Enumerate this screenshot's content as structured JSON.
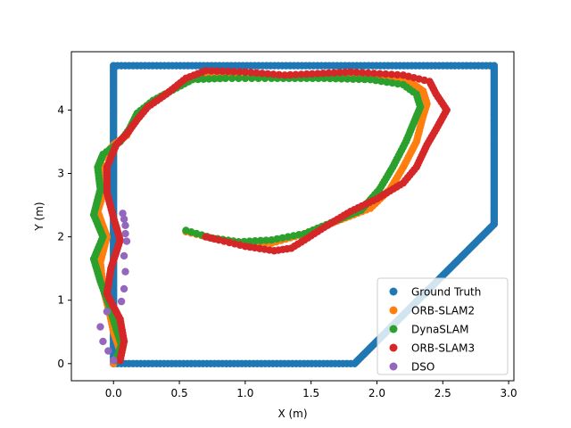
{
  "chart_data": {
    "type": "scatter",
    "xlabel": "X (m)",
    "ylabel": "Y (m)",
    "xlim": [
      -0.32,
      3.04
    ],
    "ylim": [
      -0.27,
      4.92
    ],
    "xticks": [
      0.0,
      0.5,
      1.0,
      1.5,
      2.0,
      2.5,
      3.0
    ],
    "yticks": [
      0,
      1,
      2,
      3,
      4
    ],
    "xtick_labels": [
      "0.0",
      "0.5",
      "1.0",
      "1.5",
      "2.0",
      "2.5",
      "3.0"
    ],
    "ytick_labels": [
      "0",
      "1",
      "2",
      "3",
      "4"
    ],
    "grid": false,
    "legend_position": "bottom-right",
    "series": [
      {
        "name": "Ground Truth",
        "color": "#1f77b4",
        "path": [
          [
            0.0,
            0.0
          ],
          [
            1.83,
            0.0
          ],
          [
            2.89,
            2.2
          ],
          [
            2.89,
            4.7
          ],
          [
            0.0,
            4.7
          ],
          [
            0.0,
            0.0
          ]
        ],
        "step": 0.03
      },
      {
        "name": "ORB-SLAM2",
        "color": "#ff7f0e",
        "path": [
          [
            0.0,
            0.0
          ],
          [
            0.05,
            0.2
          ],
          [
            0.0,
            0.5
          ],
          [
            -0.03,
            0.8
          ],
          [
            -0.08,
            1.2
          ],
          [
            -0.1,
            1.6
          ],
          [
            -0.05,
            2.0
          ],
          [
            -0.12,
            2.4
          ],
          [
            -0.06,
            2.8
          ],
          [
            -0.1,
            3.2
          ],
          [
            0.0,
            3.45
          ],
          [
            0.1,
            3.6
          ],
          [
            0.15,
            3.8
          ],
          [
            0.22,
            4.0
          ],
          [
            0.35,
            4.2
          ],
          [
            0.5,
            4.38
          ],
          [
            0.6,
            4.5
          ],
          [
            0.8,
            4.55
          ],
          [
            1.2,
            4.52
          ],
          [
            1.7,
            4.55
          ],
          [
            2.0,
            4.5
          ],
          [
            2.25,
            4.45
          ],
          [
            2.35,
            4.3
          ],
          [
            2.38,
            4.1
          ],
          [
            2.35,
            3.9
          ],
          [
            2.3,
            3.5
          ],
          [
            2.2,
            3.1
          ],
          [
            2.1,
            2.75
          ],
          [
            1.95,
            2.45
          ],
          [
            1.7,
            2.25
          ],
          [
            1.45,
            2.05
          ],
          [
            1.2,
            1.9
          ],
          [
            0.95,
            1.92
          ],
          [
            0.75,
            1.98
          ],
          [
            0.55,
            2.08
          ]
        ],
        "step": 0.045
      },
      {
        "name": "DynaSLAM",
        "color": "#2ca02c",
        "path": [
          [
            0.02,
            0.05
          ],
          [
            0.06,
            0.3
          ],
          [
            0.02,
            0.55
          ],
          [
            -0.03,
            0.9
          ],
          [
            -0.1,
            1.3
          ],
          [
            -0.15,
            1.65
          ],
          [
            -0.08,
            2.0
          ],
          [
            -0.15,
            2.35
          ],
          [
            -0.1,
            2.75
          ],
          [
            -0.12,
            3.1
          ],
          [
            -0.08,
            3.3
          ],
          [
            0.05,
            3.5
          ],
          [
            0.12,
            3.7
          ],
          [
            0.18,
            3.95
          ],
          [
            0.3,
            4.15
          ],
          [
            0.48,
            4.35
          ],
          [
            0.6,
            4.48
          ],
          [
            0.85,
            4.5
          ],
          [
            1.2,
            4.5
          ],
          [
            1.6,
            4.5
          ],
          [
            1.95,
            4.48
          ],
          [
            2.2,
            4.4
          ],
          [
            2.3,
            4.25
          ],
          [
            2.33,
            4.05
          ],
          [
            2.28,
            3.8
          ],
          [
            2.22,
            3.5
          ],
          [
            2.12,
            3.1
          ],
          [
            2.02,
            2.75
          ],
          [
            1.88,
            2.42
          ],
          [
            1.65,
            2.22
          ],
          [
            1.45,
            2.05
          ],
          [
            1.2,
            1.95
          ],
          [
            0.95,
            1.92
          ],
          [
            0.75,
            1.98
          ],
          [
            0.55,
            2.1
          ]
        ],
        "step": 0.05
      },
      {
        "name": "ORB-SLAM3",
        "color": "#d62728",
        "path": [
          [
            0.05,
            0.05
          ],
          [
            0.08,
            0.35
          ],
          [
            0.05,
            0.7
          ],
          [
            -0.05,
            1.1
          ],
          [
            -0.02,
            1.5
          ],
          [
            0.05,
            1.95
          ],
          [
            0.0,
            2.3
          ],
          [
            -0.05,
            2.7
          ],
          [
            -0.05,
            3.1
          ],
          [
            0.02,
            3.45
          ],
          [
            0.1,
            3.62
          ],
          [
            0.18,
            3.85
          ],
          [
            0.26,
            4.05
          ],
          [
            0.4,
            4.25
          ],
          [
            0.55,
            4.5
          ],
          [
            0.7,
            4.62
          ],
          [
            1.0,
            4.6
          ],
          [
            1.3,
            4.55
          ],
          [
            1.8,
            4.6
          ],
          [
            2.2,
            4.55
          ],
          [
            2.4,
            4.45
          ],
          [
            2.45,
            4.25
          ],
          [
            2.53,
            4.0
          ],
          [
            2.45,
            3.7
          ],
          [
            2.38,
            3.45
          ],
          [
            2.3,
            3.1
          ],
          [
            2.2,
            2.85
          ],
          [
            2.0,
            2.6
          ],
          [
            1.8,
            2.4
          ],
          [
            1.6,
            2.15
          ],
          [
            1.45,
            1.95
          ],
          [
            1.35,
            1.82
          ],
          [
            1.22,
            1.78
          ],
          [
            1.0,
            1.85
          ],
          [
            0.8,
            1.95
          ],
          [
            0.7,
            2.0
          ]
        ],
        "step": 0.045
      },
      {
        "name": "DSO",
        "color": "#9467bd",
        "points": [
          [
            0.07,
            2.37
          ],
          [
            0.08,
            2.28
          ],
          [
            0.09,
            2.18
          ],
          [
            0.09,
            2.05
          ],
          [
            0.1,
            1.93
          ],
          [
            0.08,
            1.7
          ],
          [
            0.09,
            1.45
          ],
          [
            0.08,
            1.18
          ],
          [
            0.06,
            0.98
          ],
          [
            -0.05,
            0.82
          ],
          [
            -0.1,
            0.58
          ],
          [
            -0.08,
            0.35
          ],
          [
            -0.04,
            0.2
          ],
          [
            0.0,
            0.05
          ]
        ]
      }
    ]
  }
}
